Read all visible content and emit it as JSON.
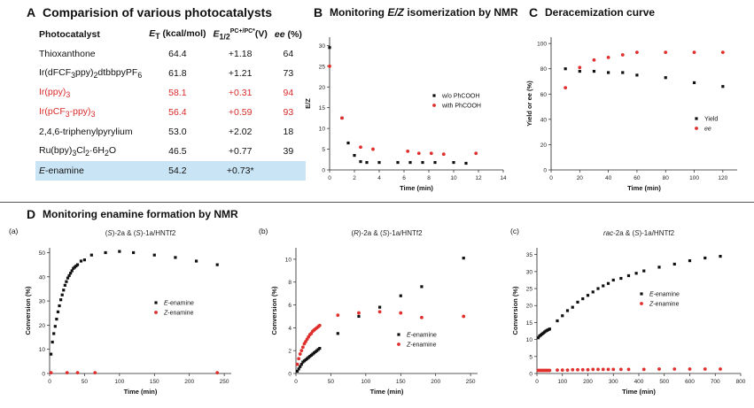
{
  "panelA": {
    "label": "A",
    "title": "Comparision of various photocatalysts",
    "headers": {
      "photocatalyst": "Photocatalyst",
      "et": "E",
      "et_sub": "T",
      "et_unit": " (kcal/mol)",
      "e12": "E",
      "e12_sub": "1/2",
      "e12_sup": "PC+/PC*",
      "e12_unit": "(V)",
      "ee": "ee",
      "ee_unit": " (%)"
    },
    "rows": [
      {
        "name": "Thioxanthone",
        "et": "64.4",
        "e": "+1.18",
        "ee": "64",
        "style": "normal"
      },
      {
        "name": "Ir(dFCF3ppy)2dtbbpyPF6",
        "et": "61.8",
        "e": "+1.21",
        "ee": "73",
        "style": "normal"
      },
      {
        "name": "Ir(ppy)3",
        "et": "58.1",
        "e": "+0.31",
        "ee": "94",
        "style": "red"
      },
      {
        "name": "Ir(pCF3-ppy)3",
        "et": "56.4",
        "e": "+0.59",
        "ee": "93",
        "style": "red"
      },
      {
        "name": "2,4,6-triphenylpyrylium",
        "et": "53.0",
        "e": "+2.02",
        "ee": "18",
        "style": "normal"
      },
      {
        "name": "Ru(bpy)3Cl2·6H2O",
        "et": "46.5",
        "e": "+0.77",
        "ee": "39",
        "style": "normal"
      },
      {
        "name": "E-enamine",
        "et": "54.2",
        "e": "+0.73*",
        "ee": "",
        "style": "highlight"
      }
    ]
  },
  "panelB": {
    "label": "B",
    "title_pre": "Monitoring ",
    "title_em": "E/Z",
    "title_post": " isomerization by NMR"
  },
  "panelC": {
    "label": "C",
    "title": "Deracemization curve"
  },
  "panelD": {
    "label": "D",
    "title": "Monitoring enamine formation by NMR"
  },
  "colors": {
    "black": "#111111",
    "red": "#e0302d"
  },
  "chart_data": [
    {
      "id": "B",
      "type": "scatter",
      "title": "",
      "xlabel": "Time (min)",
      "ylabel": "E/Z",
      "xlim": [
        0,
        14
      ],
      "ylim": [
        0,
        32
      ],
      "xticks": [
        0,
        2,
        4,
        6,
        8,
        10,
        12,
        14
      ],
      "yticks": [
        0,
        5,
        10,
        15,
        20,
        25,
        30
      ],
      "legend": "center-right",
      "series": [
        {
          "name": "w/o PhCOOH",
          "color": "#111111",
          "marker": "square",
          "x": [
            0,
            1,
            1.5,
            2,
            2.5,
            3,
            4,
            5.5,
            6.5,
            7.5,
            8.5,
            10,
            11
          ],
          "y": [
            29.5,
            12.5,
            6.5,
            3.5,
            2,
            1.8,
            1.8,
            1.8,
            1.8,
            1.8,
            1.8,
            1.8,
            1.6
          ]
        },
        {
          "name": "with PhCOOH",
          "color": "#e0302d",
          "marker": "circle",
          "x": [
            0,
            1,
            2.5,
            3.5,
            6.3,
            7.2,
            8.2,
            9.2,
            11.8
          ],
          "y": [
            25,
            12.5,
            5.5,
            5,
            4.5,
            4,
            4,
            3.8,
            4
          ]
        }
      ]
    },
    {
      "id": "C",
      "type": "scatter",
      "title": "",
      "xlabel": "Time (min)",
      "ylabel": "Yield or ee (%)",
      "xlim": [
        0,
        130
      ],
      "ylim": [
        0,
        105
      ],
      "xticks": [
        0,
        20,
        40,
        60,
        80,
        100,
        120
      ],
      "yticks": [
        0,
        20,
        40,
        60,
        80,
        100
      ],
      "legend": "center-right",
      "series": [
        {
          "name": "Yield",
          "color": "#111111",
          "marker": "square",
          "x": [
            10,
            20,
            30,
            40,
            50,
            60,
            80,
            100,
            120
          ],
          "y": [
            80,
            78,
            78,
            77,
            77,
            75,
            73,
            69,
            66
          ]
        },
        {
          "name": "ee",
          "color": "#e0302d",
          "marker": "circle",
          "x": [
            10,
            20,
            30,
            40,
            50,
            60,
            80,
            100,
            120
          ],
          "y": [
            65,
            81,
            87,
            89,
            91,
            93,
            93,
            93,
            93
          ]
        }
      ]
    },
    {
      "id": "Da",
      "type": "scatter",
      "panel": "(a)",
      "title": "(S)-2a & (S)-1a/HNTf2",
      "xlabel": "Time (min)",
      "ylabel": "Conversion (%)",
      "xlim": [
        0,
        260
      ],
      "ylim": [
        0,
        52
      ],
      "xticks": [
        0,
        50,
        100,
        150,
        200,
        250
      ],
      "yticks": [
        0,
        10,
        20,
        30,
        40,
        50
      ],
      "legend": "center-right",
      "series": [
        {
          "name": "E-enamine",
          "color": "#111111",
          "marker": "square",
          "x": [
            2,
            4,
            6,
            8,
            10,
            12,
            14,
            16,
            18,
            20,
            22,
            24,
            26,
            28,
            30,
            32,
            34,
            36,
            38,
            40,
            45,
            50,
            60,
            80,
            100,
            120,
            150,
            180,
            210,
            240
          ],
          "y": [
            8,
            13,
            16.5,
            19.5,
            22.5,
            25.5,
            28,
            30.5,
            32.5,
            34.5,
            36.5,
            38,
            39.5,
            40.5,
            41.5,
            42.5,
            43.5,
            44,
            44.5,
            45,
            46.5,
            47,
            49,
            50,
            50.5,
            50,
            49,
            48,
            46.5,
            45
          ]
        },
        {
          "name": "Z-enamine",
          "color": "#e0302d",
          "marker": "circle",
          "x": [
            2,
            25,
            40,
            65,
            240
          ],
          "y": [
            0.3,
            0.3,
            0.3,
            0.3,
            0.3
          ]
        }
      ]
    },
    {
      "id": "Db",
      "type": "scatter",
      "panel": "(b)",
      "title": "(R)-2a & (S)-1a/HNTf2",
      "xlabel": "Time (min)",
      "ylabel": "Conversion (%)",
      "xlim": [
        0,
        260
      ],
      "ylim": [
        0,
        11
      ],
      "xticks": [
        0,
        50,
        100,
        150,
        200,
        250
      ],
      "yticks": [
        0,
        2,
        4,
        6,
        8,
        10
      ],
      "legend": "bottom-right",
      "series": [
        {
          "name": "E-enamine",
          "color": "#111111",
          "marker": "square",
          "x": [
            2,
            4,
            6,
            8,
            10,
            12,
            14,
            16,
            18,
            20,
            22,
            24,
            26,
            28,
            30,
            32,
            34,
            60,
            90,
            120,
            150,
            180,
            240
          ],
          "y": [
            0.2,
            0.4,
            0.6,
            0.8,
            1.0,
            1.1,
            1.2,
            1.3,
            1.4,
            1.5,
            1.6,
            1.7,
            1.8,
            1.9,
            2.0,
            2.1,
            2.2,
            3.5,
            5.0,
            5.8,
            6.8,
            7.6,
            10.1
          ]
        },
        {
          "name": "Z-enamine",
          "color": "#e0302d",
          "marker": "circle",
          "x": [
            2,
            4,
            6,
            8,
            10,
            12,
            14,
            16,
            18,
            20,
            22,
            24,
            26,
            28,
            30,
            32,
            34,
            60,
            90,
            120,
            150,
            180,
            240
          ],
          "y": [
            0.8,
            1.3,
            1.7,
            2.0,
            2.3,
            2.6,
            2.8,
            3.0,
            3.2,
            3.4,
            3.5,
            3.7,
            3.8,
            3.9,
            4.0,
            4.1,
            4.2,
            5.1,
            5.3,
            5.4,
            5.3,
            4.9,
            5.0
          ]
        }
      ]
    },
    {
      "id": "Dc",
      "type": "scatter",
      "panel": "(c)",
      "title": "rac-2a & (S)-1a/HNTf2",
      "xlabel": "Time (min)",
      "ylabel": "Conversion (%)",
      "xlim": [
        0,
        800
      ],
      "ylim": [
        0,
        37
      ],
      "xticks": [
        0,
        100,
        200,
        300,
        400,
        500,
        600,
        700,
        800
      ],
      "yticks": [
        0,
        5,
        10,
        15,
        20,
        25,
        30,
        35
      ],
      "legend": "center-right",
      "series": [
        {
          "name": "E-enamine",
          "color": "#111111",
          "marker": "square",
          "x": [
            5,
            10,
            15,
            20,
            25,
            30,
            35,
            40,
            45,
            50,
            80,
            100,
            120,
            140,
            160,
            180,
            200,
            220,
            240,
            260,
            280,
            300,
            330,
            360,
            390,
            420,
            480,
            540,
            600,
            660,
            720
          ],
          "y": [
            10.5,
            11,
            11.3,
            11.6,
            11.9,
            12.2,
            12.5,
            12.7,
            12.9,
            13.1,
            15.5,
            17,
            18.5,
            19.5,
            21,
            22,
            23,
            24,
            25,
            25.8,
            26.5,
            27.5,
            28,
            28.8,
            29.5,
            30.2,
            31.3,
            32.2,
            33.2,
            34,
            34.5
          ]
        },
        {
          "name": "Z-enamine",
          "color": "#e0302d",
          "marker": "circle",
          "x": [
            5,
            10,
            15,
            20,
            25,
            30,
            35,
            40,
            45,
            50,
            80,
            100,
            120,
            140,
            160,
            180,
            200,
            220,
            240,
            260,
            280,
            300,
            330,
            360,
            420,
            480,
            540,
            600,
            660,
            720
          ],
          "y": [
            0.9,
            0.9,
            0.9,
            0.9,
            0.9,
            0.9,
            0.9,
            0.9,
            0.9,
            0.9,
            1.0,
            1.0,
            1.0,
            1.1,
            1.1,
            1.1,
            1.1,
            1.2,
            1.2,
            1.2,
            1.2,
            1.2,
            1.2,
            1.2,
            1.2,
            1.3,
            1.3,
            1.3,
            1.3,
            1.3
          ]
        }
      ]
    }
  ]
}
